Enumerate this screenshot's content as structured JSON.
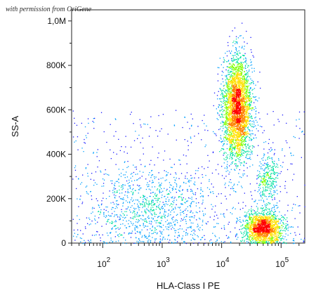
{
  "watermark": "with permission from OriGene",
  "chart_data": {
    "type": "scatter",
    "xlabel": "HLA-Class I PE",
    "ylabel": "SS-A",
    "xscale": "log",
    "xlim": [
      30,
      250000
    ],
    "ylim": [
      0,
      1050000
    ],
    "x_ticks": [
      {
        "base": "10",
        "exp": "2"
      },
      {
        "base": "10",
        "exp": "3"
      },
      {
        "base": "10",
        "exp": "4"
      },
      {
        "base": "10",
        "exp": "5"
      }
    ],
    "y_ticks": [
      {
        "value": 0,
        "label": "0"
      },
      {
        "value": 200000,
        "label": "200K"
      },
      {
        "value": 400000,
        "label": "400K"
      },
      {
        "value": 600000,
        "label": "600K"
      },
      {
        "value": 800000,
        "label": "800K"
      },
      {
        "value": 1000000,
        "label": "1,0M"
      }
    ],
    "colormap": [
      "#1a1aff",
      "#00a0ff",
      "#00e0a0",
      "#80ff00",
      "#ffe000",
      "#ff8000",
      "#ff0000"
    ],
    "populations": [
      {
        "label": "",
        "x_center": 18000,
        "y_center": 610000,
        "count": 3200
      },
      {
        "label": "",
        "x_center": 50000,
        "y_center": 70000,
        "count": 1600
      },
      {
        "label": "",
        "x_center": 60000,
        "y_center": 290000,
        "count": 300
      },
      {
        "label": "",
        "x_center": 600,
        "y_center": 160000,
        "count": 900
      }
    ]
  }
}
